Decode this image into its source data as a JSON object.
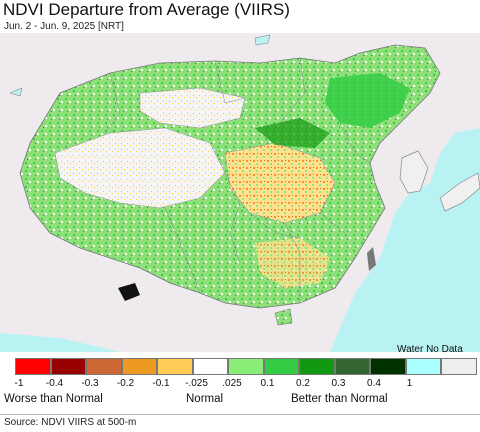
{
  "header": {
    "title": "NDVI Departure from Average (VIIRS)",
    "subtitle": "Jun. 2 - Jun. 9, 2025 [NRT]"
  },
  "legend": {
    "water_no_data_label": "Water No Data",
    "swatches": [
      {
        "color": "#ff0000"
      },
      {
        "color": "#990000"
      },
      {
        "color": "#cc6633"
      },
      {
        "color": "#ee9922"
      },
      {
        "color": "#ffcc55"
      },
      {
        "color": "#ffffff"
      },
      {
        "color": "#88ee77"
      },
      {
        "color": "#33cc44"
      },
      {
        "color": "#119911"
      },
      {
        "color": "#336633"
      },
      {
        "color": "#003300"
      },
      {
        "color": "#aaffff"
      },
      {
        "color": "#eeeeee"
      }
    ],
    "ticks": [
      "-1",
      "-0.4",
      "-0.3",
      "-0.2",
      "-0.1",
      "-.025",
      ".025",
      "0.1",
      "0.2",
      "0.3",
      "0.4",
      "1"
    ],
    "categories": {
      "worse": "Worse than Normal",
      "normal": "Normal",
      "better": "Better than Normal"
    }
  },
  "footer": {
    "source": "Source: NDVI VIIRS at 500-m"
  },
  "map": {
    "ocean_color": "#b8f2f2",
    "land_nodata_color": "#f0f0f0"
  }
}
